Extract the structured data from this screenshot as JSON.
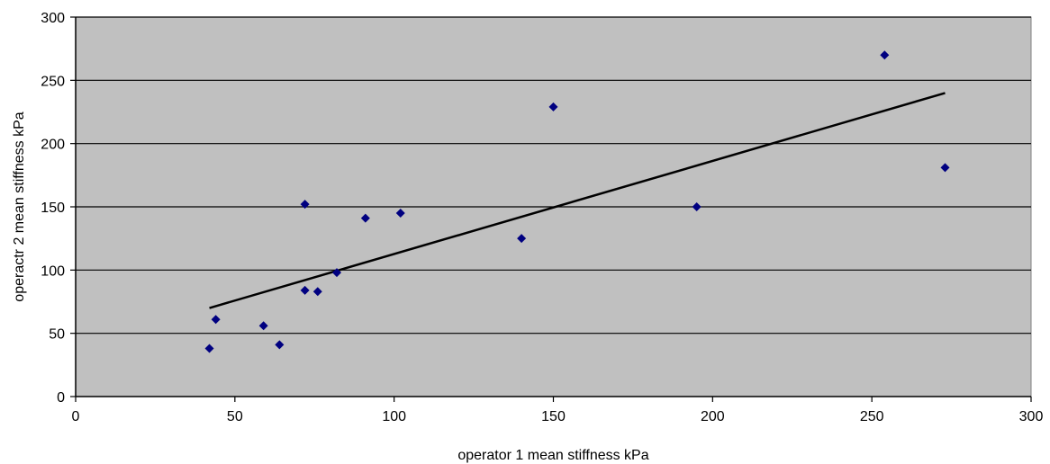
{
  "chart_data": {
    "type": "scatter",
    "title": "",
    "xlabel": "operator 1 mean  stiffness kPa",
    "ylabel": "operactr 2 mean stiffness kPa",
    "xlim": [
      0,
      300
    ],
    "ylim": [
      0,
      300
    ],
    "x_ticks": [
      0,
      50,
      100,
      150,
      200,
      250,
      300
    ],
    "y_ticks": [
      0,
      50,
      100,
      150,
      200,
      250,
      300
    ],
    "x_tick_labels": [
      "0",
      "50",
      "100",
      "150",
      "200",
      "250",
      "300"
    ],
    "y_tick_labels": [
      "0",
      "50",
      "100",
      "150",
      "200",
      "250",
      "300"
    ],
    "grid": "horizontal",
    "legend": "none",
    "series": [
      {
        "points": [
          {
            "x": 42,
            "y": 38
          },
          {
            "x": 44,
            "y": 61
          },
          {
            "x": 59,
            "y": 56
          },
          {
            "x": 64,
            "y": 41
          },
          {
            "x": 72,
            "y": 152
          },
          {
            "x": 72,
            "y": 84
          },
          {
            "x": 76,
            "y": 83
          },
          {
            "x": 82,
            "y": 98
          },
          {
            "x": 91,
            "y": 141
          },
          {
            "x": 102,
            "y": 145
          },
          {
            "x": 140,
            "y": 125
          },
          {
            "x": 150,
            "y": 229
          },
          {
            "x": 195,
            "y": 150
          },
          {
            "x": 254,
            "y": 270
          },
          {
            "x": 273,
            "y": 181
          }
        ],
        "color": "#000080"
      }
    ],
    "trendline": {
      "type": "linear",
      "from": {
        "x": 42,
        "y": 70
      },
      "to": {
        "x": 273,
        "y": 240
      },
      "color": "#000000"
    },
    "colors": {
      "plot_background": "#c0c0c0",
      "gridline": "#000000",
      "marker": "#000080",
      "trendline": "#000000"
    }
  }
}
